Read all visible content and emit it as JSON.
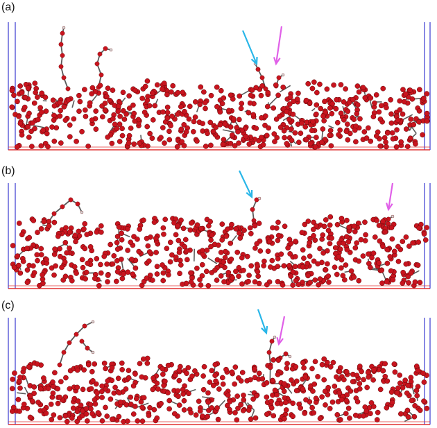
{
  "figure": {
    "panels": [
      {
        "label": "(a)",
        "cyan_arrow": "cyan-arrow",
        "magenta_arrow": "magenta-arrow"
      },
      {
        "label": "(b)",
        "cyan_arrow": "cyan-arrow",
        "magenta_arrow": "magenta-arrow"
      },
      {
        "label": "(c)",
        "cyan_arrow": "cyan-arrow",
        "magenta_arrow": "magenta-arrow"
      }
    ],
    "colors": {
      "atom_oxygen": "#c8141e",
      "bond": "#5a5a5a",
      "hydrogen": "#d8d8d8",
      "cell_box": "#3a3ad0",
      "cell_base": "#e03030",
      "arrow_cyan": "#29b6e8",
      "arrow_magenta": "#e060e8"
    }
  }
}
